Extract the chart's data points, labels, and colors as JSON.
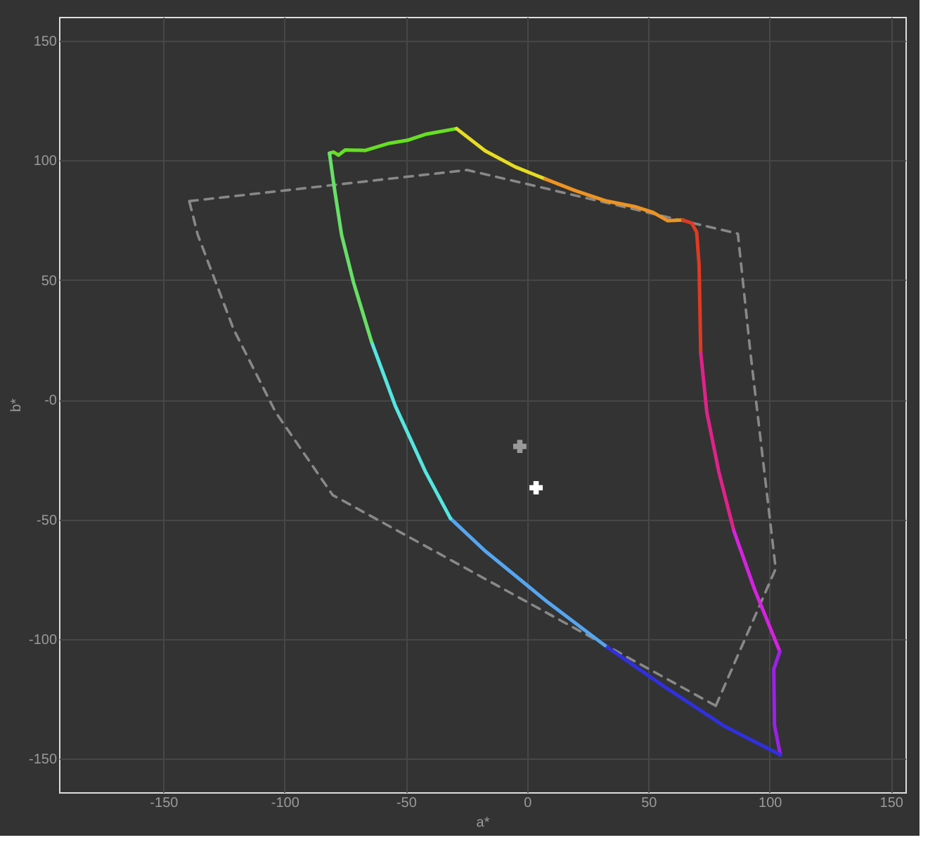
{
  "chart_data": {
    "type": "line",
    "xlabel": "a*",
    "ylabel": "b*",
    "xlim": [
      -193,
      156
    ],
    "ylim": [
      -164,
      160
    ],
    "xticks": [
      -150,
      -100,
      -50,
      0,
      50,
      100,
      150
    ],
    "yticks": [
      -150,
      -100,
      -50,
      {
        "value": 0,
        "label": "-0"
      },
      50,
      100,
      150
    ],
    "grid": true,
    "series": [
      {
        "type": "line",
        "color": "#888888",
        "line_style": "dashed",
        "x": [
          -139.3,
          -24.7,
          86.9,
          92.1,
          102.5,
          77.8
        ],
        "values": [
          83,
          96,
          69.4,
          19.5,
          -70.6,
          -127.9
        ]
      },
      {
        "type": "line",
        "color": "#888888",
        "line_style": "dashed",
        "x": [
          77.8,
          -80.2,
          -103.7,
          -121,
          -135.8,
          -139.3
        ],
        "values": [
          -127.9,
          -39.8,
          -5.2,
          29.4,
          68.9,
          83
        ]
      },
      {
        "type": "line",
        "color": "#66e022",
        "x": [
          -81.5,
          -79.8,
          -77.8,
          -75,
          -66.7,
          -56.8,
          -49.4,
          -42,
          -29.1
        ],
        "values": [
          103,
          103.5,
          102.2,
          104.4,
          104.2,
          107.2,
          108.4,
          110.9,
          113.3
        ]
      },
      {
        "type": "line",
        "color": "#e6dc22",
        "x": [
          -29.1,
          -17.3,
          -4.9,
          7.4
        ],
        "values": [
          113.3,
          104,
          97.3,
          92.3
        ]
      },
      {
        "type": "line",
        "color": "#ee9422",
        "x": [
          7.4,
          19.8,
          32.1,
          44.4,
          51.9,
          58,
          64.2
        ],
        "values": [
          92.3,
          87.4,
          83.2,
          80.7,
          78.3,
          74.8,
          75.1
        ]
      },
      {
        "type": "line",
        "color": "#e03a22",
        "x": [
          64.2,
          67.9,
          69.9,
          70.9,
          71.6
        ],
        "values": [
          75.1,
          73.8,
          70.1,
          56.5,
          19.5
        ]
      },
      {
        "type": "line",
        "color": "#e0228a",
        "x": [
          71.6,
          74.1,
          79,
          85.2
        ],
        "values": [
          19.5,
          -5.2,
          -29.9,
          -54.6
        ]
      },
      {
        "type": "line",
        "color": "#d622e0",
        "x": [
          85.2,
          93.8,
          104.2
        ],
        "values": [
          -54.6,
          -79.3,
          -105.2
        ]
      },
      {
        "type": "line",
        "color": "#9a22e6",
        "x": [
          104.2,
          101.7,
          102,
          104.4
        ],
        "values": [
          -105.2,
          -112.6,
          -136,
          -148.4
        ]
      },
      {
        "type": "line",
        "color": "#3030e0",
        "x": [
          104.4,
          81.5,
          56.8,
          32.1
        ],
        "values": [
          -148.4,
          -136.5,
          -120,
          -102.7
        ]
      },
      {
        "type": "line",
        "color": "#55a6f0",
        "x": [
          32.1,
          7.4,
          -17.3,
          -31.6
        ],
        "values": [
          -102.7,
          -83.7,
          -63.2,
          -49.6
        ]
      },
      {
        "type": "line",
        "color": "#55e6e0",
        "x": [
          -31.6,
          -42,
          -54.3,
          -64.2
        ],
        "values": [
          -49.6,
          -29.9,
          -2.7,
          24.4
        ]
      },
      {
        "type": "line",
        "color": "#66e066",
        "x": [
          -64.2,
          -71.6,
          -76.5,
          -79.5,
          -81.5
        ],
        "values": [
          24.4,
          49.1,
          68.9,
          88.6,
          103
        ]
      },
      {
        "type": "scatter",
        "color": "#999999",
        "marker": "cross",
        "x": [
          -3
        ],
        "values": [
          -19.5
        ]
      },
      {
        "type": "scatter",
        "color": "#ffffff",
        "marker": "cross",
        "x": [
          3.7
        ],
        "values": [
          -36.8
        ]
      }
    ]
  }
}
